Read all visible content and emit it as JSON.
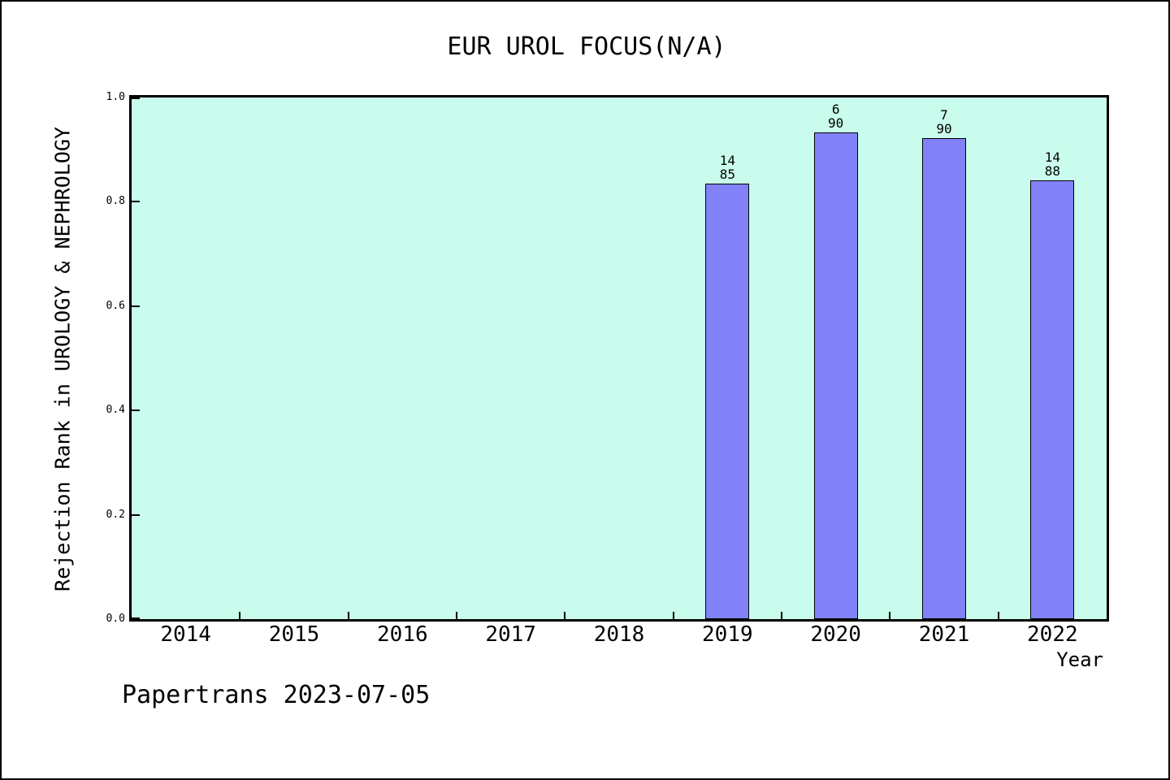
{
  "chart_data": {
    "type": "bar",
    "title": "EUR UROL FOCUS(N/A)",
    "xlabel": "Year",
    "ylabel": "Rejection Rank in UROLOGY & NEPHROLOGY",
    "footer": "Papertrans 2023-07-05",
    "ylim": [
      0.0,
      1.0
    ],
    "yticks": [
      0.0,
      0.2,
      0.4,
      0.6,
      0.8,
      1.0
    ],
    "categories": [
      "2014",
      "2015",
      "2016",
      "2017",
      "2018",
      "2019",
      "2020",
      "2021",
      "2022"
    ],
    "bars": [
      {
        "year": "2019",
        "rank": "14",
        "total": "85",
        "value": 0.835
      },
      {
        "year": "2020",
        "rank": "6",
        "total": "90",
        "value": 0.933
      },
      {
        "year": "2021",
        "rank": "7",
        "total": "90",
        "value": 0.922
      },
      {
        "year": "2022",
        "rank": "14",
        "total": "88",
        "value": 0.841
      }
    ],
    "grid": "off",
    "legend": "none",
    "colors": {
      "bar_fill": "#8282f8",
      "bar_edge": "#000000",
      "plot_bg": "#c9fcec",
      "frame": "#000000",
      "page_bg": "#ffffff",
      "text": "#000000"
    }
  }
}
